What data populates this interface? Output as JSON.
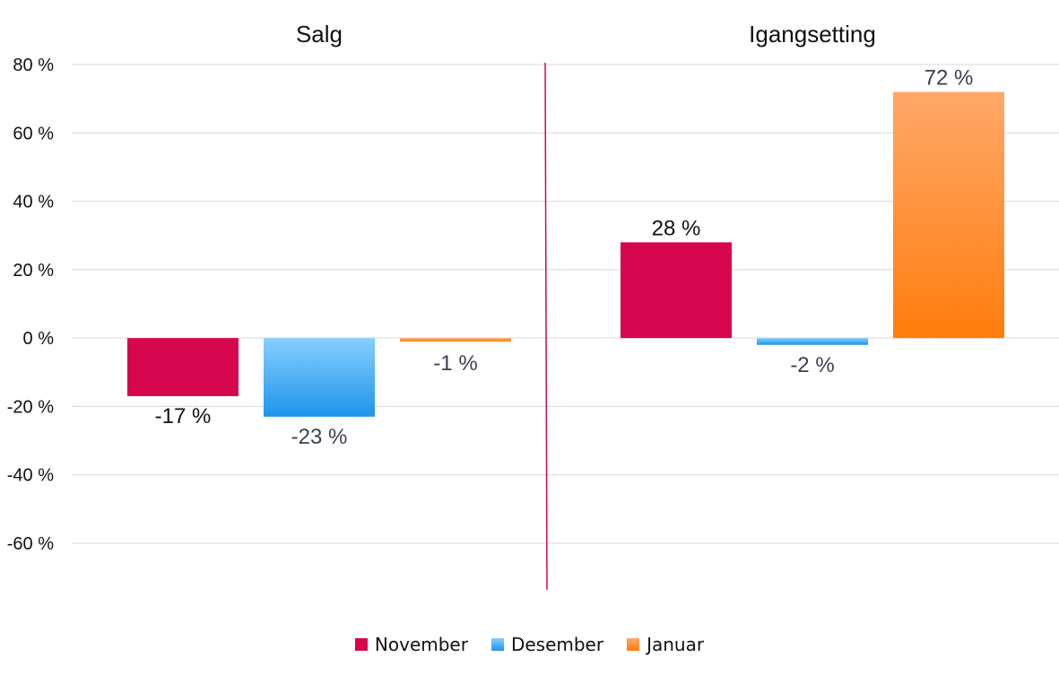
{
  "chart_data": {
    "type": "bar",
    "panels": [
      {
        "title": "Salg",
        "values": [
          -17,
          -23,
          -1
        ],
        "labels": [
          "-17 %",
          "-23 %",
          "-1 %"
        ]
      },
      {
        "title": "Igangsetting",
        "values": [
          28,
          -2,
          72
        ],
        "labels": [
          "28 %",
          "-2 %",
          "72 %"
        ]
      }
    ],
    "series": [
      {
        "name": "November",
        "color": "#d6074f"
      },
      {
        "name": "Desember",
        "color": "#3aa6ef"
      },
      {
        "name": "Januar",
        "color": "#ff8d2e"
      }
    ],
    "ylim": [
      -60,
      80
    ],
    "yticks": [
      80,
      60,
      40,
      20,
      0,
      -20,
      -40,
      -60
    ],
    "ytick_labels": [
      "80 %",
      "60 %",
      "40 %",
      "20 %",
      "0 %",
      "-20 %",
      "-40 %",
      "-60 %"
    ],
    "grid": true,
    "legend_position": "bottom"
  }
}
